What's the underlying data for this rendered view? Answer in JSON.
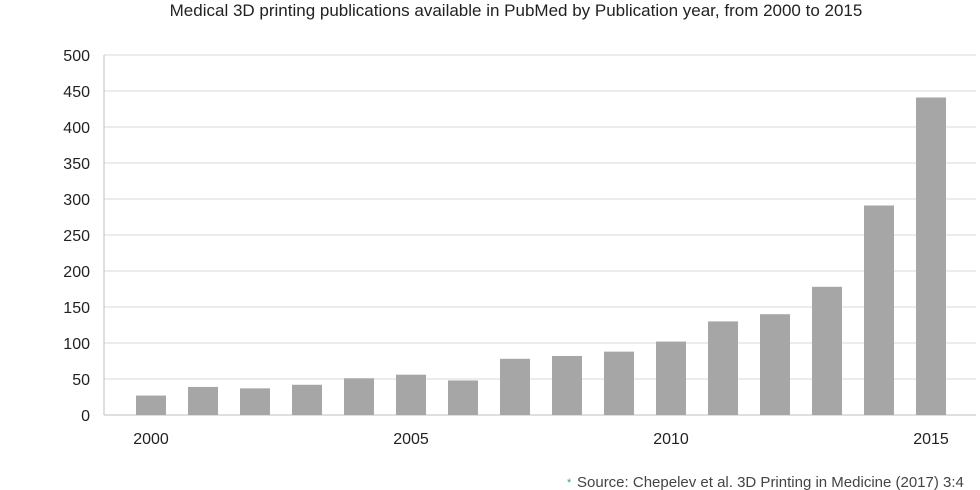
{
  "chart_data": {
    "type": "bar",
    "title": "Medical 3D printing publications available in PubMed by Publication year, from 2000 to 2015",
    "categories": [
      "2000",
      "2001",
      "2002",
      "2003",
      "2004",
      "2005",
      "2006",
      "2007",
      "2008",
      "2009",
      "2010",
      "2011",
      "2012",
      "2013",
      "2014",
      "2015"
    ],
    "x_tick_labels": [
      "2000",
      "2005",
      "2010",
      "2015"
    ],
    "values": [
      27,
      39,
      37,
      42,
      51,
      56,
      48,
      78,
      82,
      88,
      102,
      130,
      140,
      178,
      291,
      441
    ],
    "ylim": [
      0,
      500
    ],
    "y_ticks": [
      "0",
      "50",
      "100",
      "150",
      "200",
      "250",
      "300",
      "350",
      "400",
      "450",
      "500"
    ],
    "grid": true,
    "bar_color": "#a6a6a6",
    "grid_color": "#d9d9d9",
    "axis_color": "#bfbfbf",
    "source_marker": "*",
    "source_marker_color": "#2aa889",
    "source": "Source: Chepelev et al. 3D Printing in Medicine (2017) 3:4"
  }
}
